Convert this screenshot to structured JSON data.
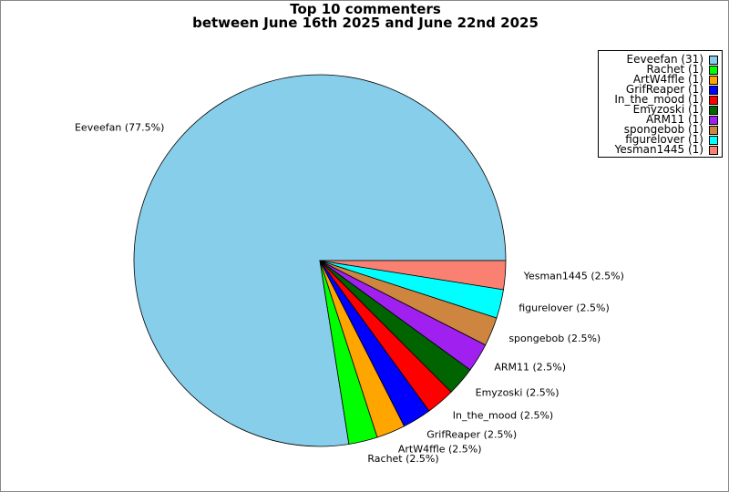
{
  "chart_data": {
    "type": "pie",
    "title_line1": "Top 10 commenters",
    "title_line2": "between June 16th 2025 and June 22nd 2025",
    "slices": [
      {
        "name": "Eeveefan",
        "value": 31,
        "percent_label": "Eeveefan (77.5%)",
        "legend_label": "Eeveefan (31)",
        "color": "#87ceeb"
      },
      {
        "name": "Rachet",
        "value": 1,
        "percent_label": "Rachet (2.5%)",
        "legend_label": "Rachet (1)",
        "color": "#00ff00"
      },
      {
        "name": "ArtW4ffle",
        "value": 1,
        "percent_label": "ArtW4ffle (2.5%)",
        "legend_label": "ArtW4ffle (1)",
        "color": "#ffa500"
      },
      {
        "name": "GrifReaper",
        "value": 1,
        "percent_label": "GrifReaper (2.5%)",
        "legend_label": "GrifReaper (1)",
        "color": "#0000ff"
      },
      {
        "name": "In_the_mood",
        "value": 1,
        "percent_label": "In_the_mood (2.5%)",
        "legend_label": "In_the_mood (1)",
        "color": "#ff0000"
      },
      {
        "name": "Emyzoski",
        "value": 1,
        "percent_label": "Emyzoski (2.5%)",
        "legend_label": "Emyzoski (1)",
        "color": "#006400"
      },
      {
        "name": "ARM11",
        "value": 1,
        "percent_label": "ARM11 (2.5%)",
        "legend_label": "ARM11 (1)",
        "color": "#a020f0"
      },
      {
        "name": "spongebob",
        "value": 1,
        "percent_label": "spongebob (2.5%)",
        "legend_label": "spongebob (1)",
        "color": "#cd853f"
      },
      {
        "name": "figurelover",
        "value": 1,
        "percent_label": "figurelover (2.5%)",
        "legend_label": "figurelover (1)",
        "color": "#00ffff"
      },
      {
        "name": "Yesman1445",
        "value": 1,
        "percent_label": "Yesman1445 (2.5%)",
        "legend_label": "Yesman1445 (1)",
        "color": "#fa8072"
      }
    ],
    "legend_position": "top-right"
  }
}
